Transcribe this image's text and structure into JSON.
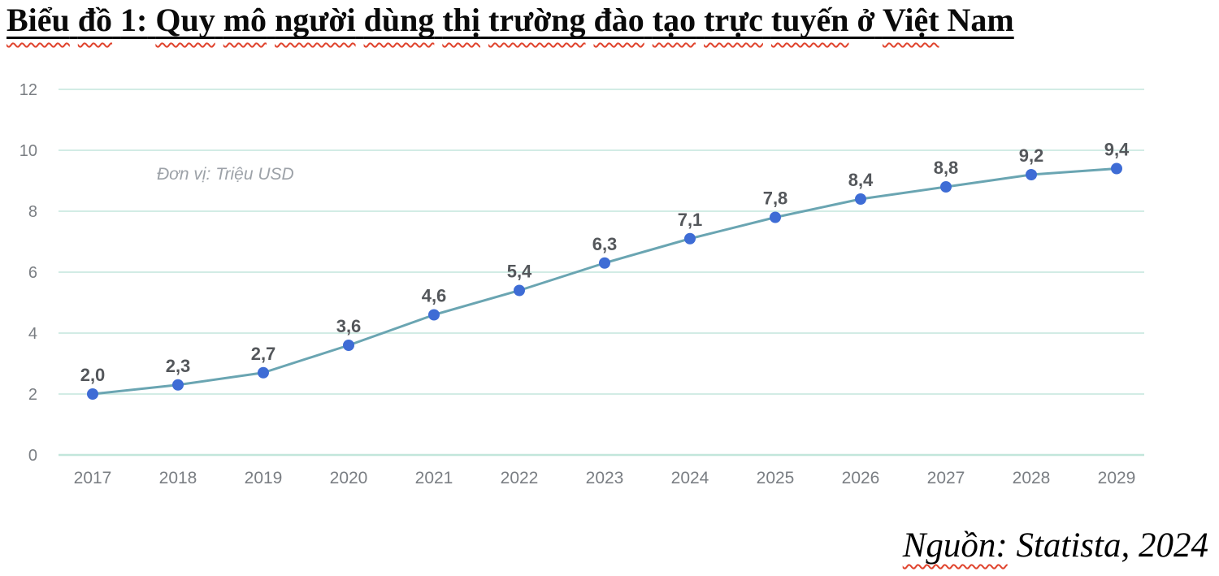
{
  "title": {
    "full": "Biểu đồ 1: Quy mô người dùng thị trường đào tạo trực tuyến ở Việt Nam",
    "words": [
      {
        "text": "Biểu",
        "misspelled": true
      },
      {
        "text": "đồ",
        "misspelled": true
      },
      {
        "text": "1:",
        "misspelled": false
      },
      {
        "text": "Quy",
        "misspelled": true
      },
      {
        "text": "mô",
        "misspelled": true
      },
      {
        "text": "người",
        "misspelled": true
      },
      {
        "text": "dùng",
        "misspelled": true
      },
      {
        "text": "thị",
        "misspelled": true
      },
      {
        "text": "trường",
        "misspelled": true
      },
      {
        "text": "đào",
        "misspelled": true
      },
      {
        "text": "tạo",
        "misspelled": true
      },
      {
        "text": "trực",
        "misspelled": true
      },
      {
        "text": "tuyến",
        "misspelled": true
      },
      {
        "text": "ở",
        "misspelled": false
      },
      {
        "text": "Việt",
        "misspelled": true
      },
      {
        "text": "Nam",
        "misspelled": false
      }
    ]
  },
  "source": {
    "prefix": "Nguồn:",
    "rest": " Statista, 2024"
  },
  "colors": {
    "accent_blue": "#3e6cd5",
    "line_teal": "#6aa5b2",
    "gridline": "#d2ece5",
    "squiggle_red": "#e0442e",
    "axis_label_gray": "#7a7e83",
    "data_label_gray": "#54575b"
  },
  "chart_data": {
    "type": "line",
    "x": [
      "2017",
      "2018",
      "2019",
      "2020",
      "2021",
      "2022",
      "2023",
      "2024",
      "2025",
      "2026",
      "2027",
      "2028",
      "2029"
    ],
    "values": [
      2.0,
      2.3,
      2.7,
      3.6,
      4.6,
      5.4,
      6.3,
      7.1,
      7.8,
      8.4,
      8.8,
      9.2,
      9.4
    ],
    "point_labels": [
      "2,0",
      "2,3",
      "2,7",
      "3,6",
      "4,6",
      "5,4",
      "6,3",
      "7,1",
      "7,8",
      "8,4",
      "8,8",
      "9,2",
      "9,4"
    ],
    "unit_annotation": "Đơn vị: Triệu USD",
    "title": "Biểu đồ 1: Quy mô người dùng thị trường đào tạo trực tuyến ở Việt Nam",
    "xlabel": "",
    "ylabel": "",
    "ylim": [
      0,
      12
    ],
    "yticks": [
      0,
      2,
      4,
      6,
      8,
      10,
      12
    ],
    "grid": true,
    "legend": "none"
  }
}
